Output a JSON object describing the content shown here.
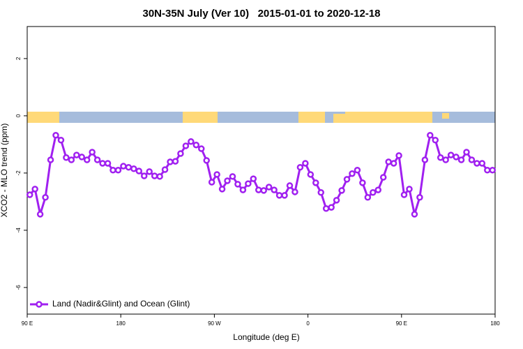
{
  "chart_data": {
    "type": "line",
    "title": "30N-35N July (Ver 10)   2015-01-01 to 2020-12-18",
    "xlabel": "Longitude (deg E)",
    "ylabel": "XCO2 - MLO trend (ppm)",
    "xlim": [
      90,
      540
    ],
    "ylim": [
      -6.93,
      3.12
    ],
    "xticks": [
      {
        "value": 90,
        "label": "90 E"
      },
      180,
      {
        "value": 270,
        "label": "90 W"
      },
      {
        "value": 360,
        "label": "0"
      },
      {
        "value": 450,
        "label": "90 E"
      },
      {
        "value": 540,
        "label": "180"
      }
    ],
    "yticks": [
      2,
      0,
      -2,
      -4,
      -6
    ],
    "legend": "bottom-left",
    "x": [
      92.5,
      97.5,
      102.5,
      107.5,
      112.5,
      117.5,
      122.5,
      127.5,
      132.5,
      137.5,
      142.5,
      147.5,
      152.5,
      157.5,
      162.5,
      167.5,
      172.5,
      177.5,
      182.5,
      187.5,
      192.5,
      197.5,
      202.5,
      207.5,
      212.5,
      217.5,
      222.5,
      227.5,
      232.5,
      237.5,
      242.5,
      247.5,
      252.5,
      257.5,
      262.5,
      267.5,
      272.5,
      277.5,
      282.5,
      287.5,
      292.5,
      297.5,
      302.5,
      307.5,
      312.5,
      317.5,
      322.5,
      327.5,
      332.5,
      337.5,
      342.5,
      347.5,
      352.5,
      357.5,
      362.5,
      367.5,
      372.5,
      377.5,
      382.5,
      387.5,
      392.5,
      397.5,
      402.5,
      407.5,
      412.5,
      417.5,
      422.5,
      427.5,
      432.5,
      437.5,
      442.5,
      447.5,
      452.5,
      457.5,
      462.5,
      467.5,
      472.5,
      477.5,
      482.5,
      487.5,
      492.5,
      497.5,
      502.5,
      507.5,
      512.5,
      517.5,
      522.5,
      527.5,
      532.5,
      537.5
    ],
    "series": [
      {
        "name": "Land (Nadir&Glint) and Ocean (Glint)",
        "color": "#a020f0",
        "values": [
          -2.76,
          -2.56,
          -3.44,
          -2.85,
          -1.54,
          -0.68,
          -0.85,
          -1.46,
          -1.54,
          -1.37,
          -1.44,
          -1.54,
          -1.27,
          -1.54,
          -1.66,
          -1.66,
          -1.9,
          -1.9,
          -1.76,
          -1.8,
          -1.85,
          -1.93,
          -2.1,
          -1.95,
          -2.1,
          -2.12,
          -1.88,
          -1.61,
          -1.59,
          -1.32,
          -1.05,
          -0.9,
          -1.02,
          -1.15,
          -1.56,
          -2.32,
          -2.05,
          -2.56,
          -2.27,
          -2.12,
          -2.39,
          -2.59,
          -2.37,
          -2.2,
          -2.59,
          -2.61,
          -2.49,
          -2.59,
          -2.78,
          -2.78,
          -2.44,
          -2.66,
          -1.8,
          -1.66,
          -2.05,
          -2.34,
          -2.68,
          -3.24,
          -3.2,
          -2.95,
          -2.61,
          -2.22,
          -2.02,
          -1.9,
          -2.34,
          -2.85,
          -2.68,
          -2.59,
          -2.15,
          -1.61,
          -1.66,
          -1.39,
          -2.76,
          -2.56,
          -3.44,
          -2.85,
          -1.54,
          -0.68,
          -0.85,
          -1.46,
          -1.54,
          -1.37,
          -1.44,
          -1.54,
          -1.27,
          -1.54,
          -1.66,
          -1.66,
          -1.9,
          -1.9
        ]
      }
    ]
  }
}
